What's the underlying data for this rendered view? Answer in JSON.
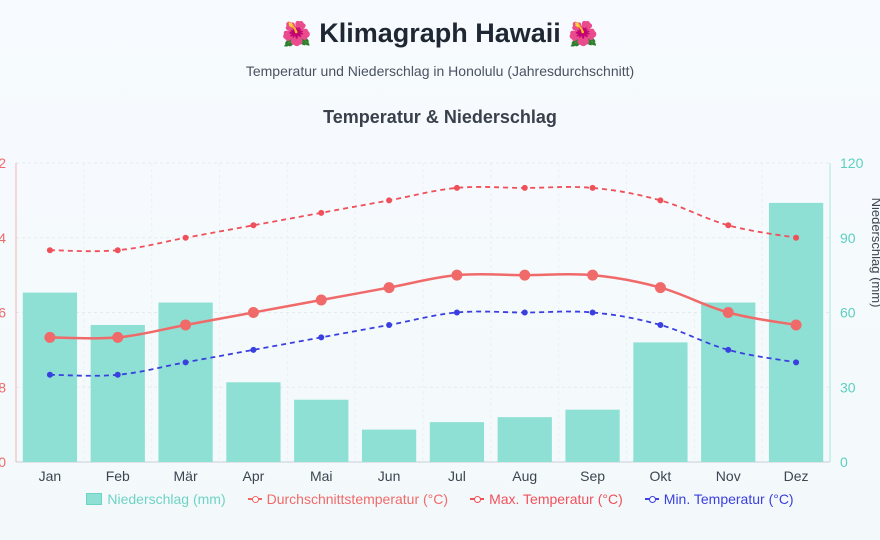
{
  "header": {
    "title": "Klimagraph Hawaii",
    "emoji": "🌺",
    "subtitle": "Temperatur und Niederschlag in Honolulu (Jahresdurchschnitt)"
  },
  "chart_data": {
    "type": "bar+line",
    "title": "Temperatur & Niederschlag",
    "categories": [
      "Jan",
      "Feb",
      "Mär",
      "Apr",
      "Mai",
      "Jun",
      "Jul",
      "Aug",
      "Sep",
      "Okt",
      "Nov",
      "Dez"
    ],
    "y_left": {
      "ticks": [
        "2",
        "4",
        "6",
        "8",
        "0"
      ],
      "color": "#f06a6a"
    },
    "y_right": {
      "ticks": [
        0,
        30,
        60,
        90,
        120
      ],
      "ylim": [
        0,
        120
      ],
      "label": "Niederschlag (mm)",
      "color": "#5ccfc0"
    },
    "series": [
      {
        "name": "Niederschlag (mm)",
        "kind": "bar",
        "axis": "right",
        "color": "#8ee0d4",
        "values": [
          68,
          55,
          64,
          32,
          25,
          13,
          16,
          18,
          21,
          48,
          64,
          104
        ]
      },
      {
        "name": "Durchschnittstemperatur (°C)",
        "kind": "line",
        "axis": "left",
        "color": "#f06a6a",
        "values": [
          23.0,
          23.0,
          23.5,
          24.0,
          24.5,
          25.0,
          25.5,
          25.5,
          25.5,
          25.0,
          24.0,
          23.5
        ]
      },
      {
        "name": "Max. Temperatur (°C)",
        "kind": "line",
        "axis": "left",
        "color": "#f0505a",
        "values": [
          26.5,
          26.5,
          27.0,
          27.5,
          28.0,
          28.5,
          29.0,
          29.0,
          29.0,
          28.5,
          27.5,
          27.0
        ]
      },
      {
        "name": "Min. Temperatur (°C)",
        "kind": "line",
        "axis": "left",
        "color": "#3a3fe0",
        "values": [
          21.5,
          21.5,
          22.0,
          22.5,
          23.0,
          23.5,
          24.0,
          24.0,
          24.0,
          23.5,
          22.5,
          22.0
        ]
      }
    ],
    "y_left_range": [
      18,
      30
    ],
    "grid": true,
    "legend_position": "bottom"
  }
}
